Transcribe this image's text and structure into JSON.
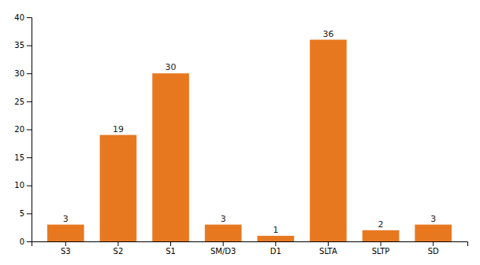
{
  "chart_data": {
    "type": "bar",
    "categories": [
      "S3",
      "S2",
      "S1",
      "SM/D3",
      "D1",
      "SLTA",
      "SLTP",
      "SD"
    ],
    "values": [
      3,
      19,
      30,
      3,
      1,
      36,
      2,
      3
    ],
    "color": "#E87820",
    "ylim": [
      0,
      40
    ],
    "yticks": [
      0,
      5,
      10,
      15,
      20,
      25,
      30,
      35,
      40
    ],
    "grid": false,
    "data_labels": true
  }
}
